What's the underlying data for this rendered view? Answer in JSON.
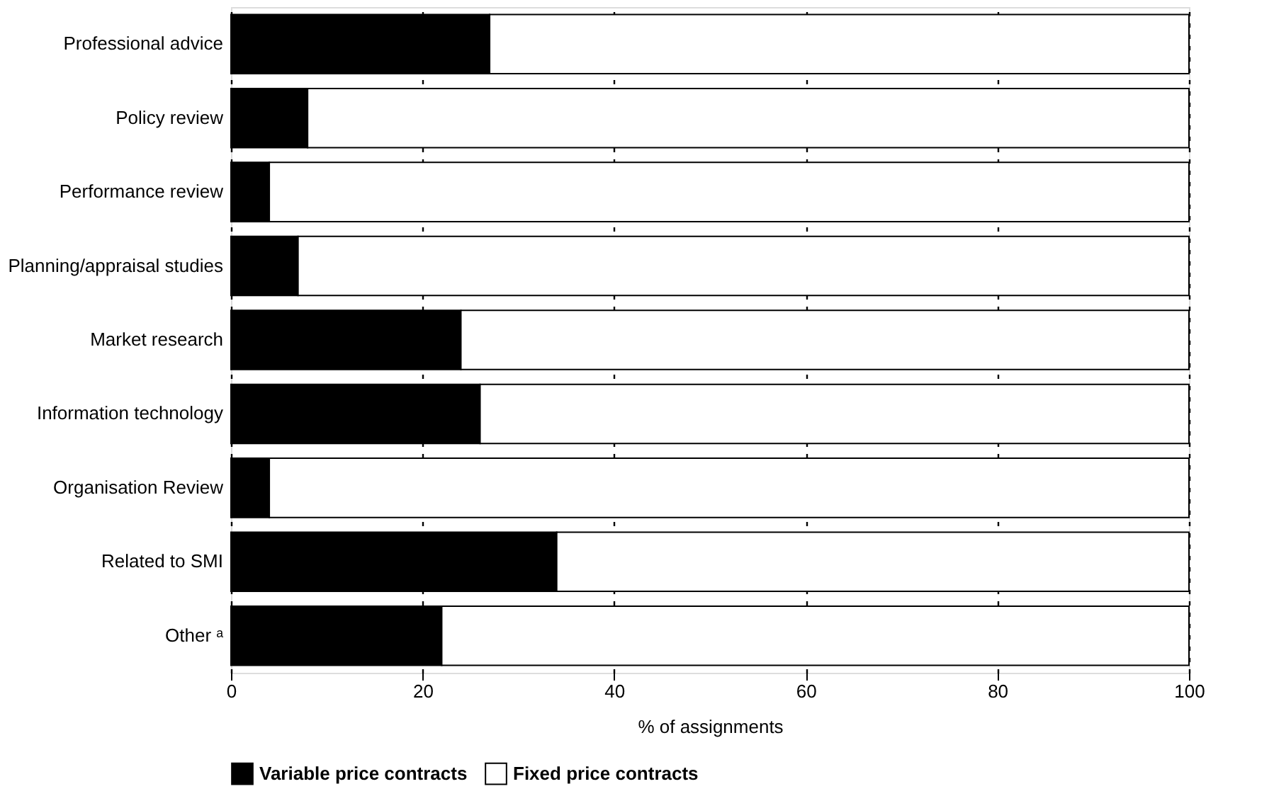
{
  "chart_data": {
    "type": "bar",
    "orientation": "horizontal",
    "stacked": true,
    "xlabel": "% of assignments",
    "categories": [
      "Professional advice",
      "Policy review",
      "Performance review",
      "Planning/appraisal studies",
      "Market research",
      "Information technology",
      "Organisation Review",
      "Related to SMI",
      "Other ᵃ"
    ],
    "series": [
      {
        "name": "Variable price contracts",
        "color": "#000000",
        "values": [
          27,
          8,
          4,
          7,
          24,
          26,
          4,
          34,
          22
        ]
      },
      {
        "name": "Fixed price contracts",
        "color": "#ffffff",
        "values": [
          73,
          92,
          96,
          93,
          76,
          74,
          96,
          66,
          78
        ]
      }
    ],
    "xlim": [
      0,
      100
    ],
    "xticks": [
      0,
      20,
      40,
      60,
      80,
      100
    ],
    "grid": "x",
    "legend": "bottom"
  }
}
